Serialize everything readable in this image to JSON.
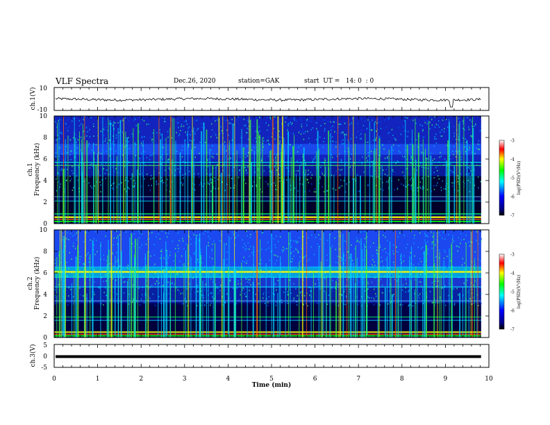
{
  "header": {
    "title": "VLF Spectra",
    "date": "Dec.26, 2020",
    "station": "station=GAK",
    "start": "start  UT =   14: 0  : 0"
  },
  "chart_data": [
    {
      "type": "line",
      "name": "ch1-waveform",
      "ylabel": "ch.1(V)",
      "ylim": [
        -10,
        10
      ],
      "yticks": [
        "10",
        "-10"
      ],
      "xlim": [
        0,
        10
      ]
    },
    {
      "type": "heatmap",
      "name": "ch1-spectrogram",
      "ylabel": "ch.1",
      "ylabel2": "Frequency (kHz)",
      "ylim": [
        0,
        10
      ],
      "yticks": [
        "0",
        "2",
        "4",
        "6",
        "8",
        "10"
      ],
      "xlim": [
        0,
        10
      ],
      "colorbar": {
        "label": "log(PSD)(V²/Hz)",
        "range": [
          -7,
          -3
        ],
        "ticks": [
          "-3",
          "-4",
          "-5",
          "-6",
          "-7"
        ]
      }
    },
    {
      "type": "heatmap",
      "name": "ch2-spectrogram",
      "ylabel": "ch.2",
      "ylabel2": "Frequency (kHz)",
      "ylim": [
        0,
        10
      ],
      "yticks": [
        "0",
        "2",
        "4",
        "6",
        "8",
        "10"
      ],
      "xlim": [
        0,
        10
      ],
      "colorbar": {
        "label": "log(PSD)(V²/Hz)",
        "range": [
          -7,
          -3
        ],
        "ticks": [
          "-3",
          "-4",
          "-5",
          "-6",
          "-7"
        ]
      }
    },
    {
      "type": "line",
      "name": "ch3-waveform",
      "ylabel": "ch.3(V)",
      "ylim": [
        -5,
        5
      ],
      "yticks": [
        "5",
        "0",
        "-5"
      ],
      "xlim": [
        0,
        10
      ],
      "xlabel": "Time (min)",
      "xticks": [
        "0",
        "1",
        "2",
        "3",
        "4",
        "5",
        "6",
        "7",
        "8",
        "9",
        "10"
      ]
    }
  ]
}
